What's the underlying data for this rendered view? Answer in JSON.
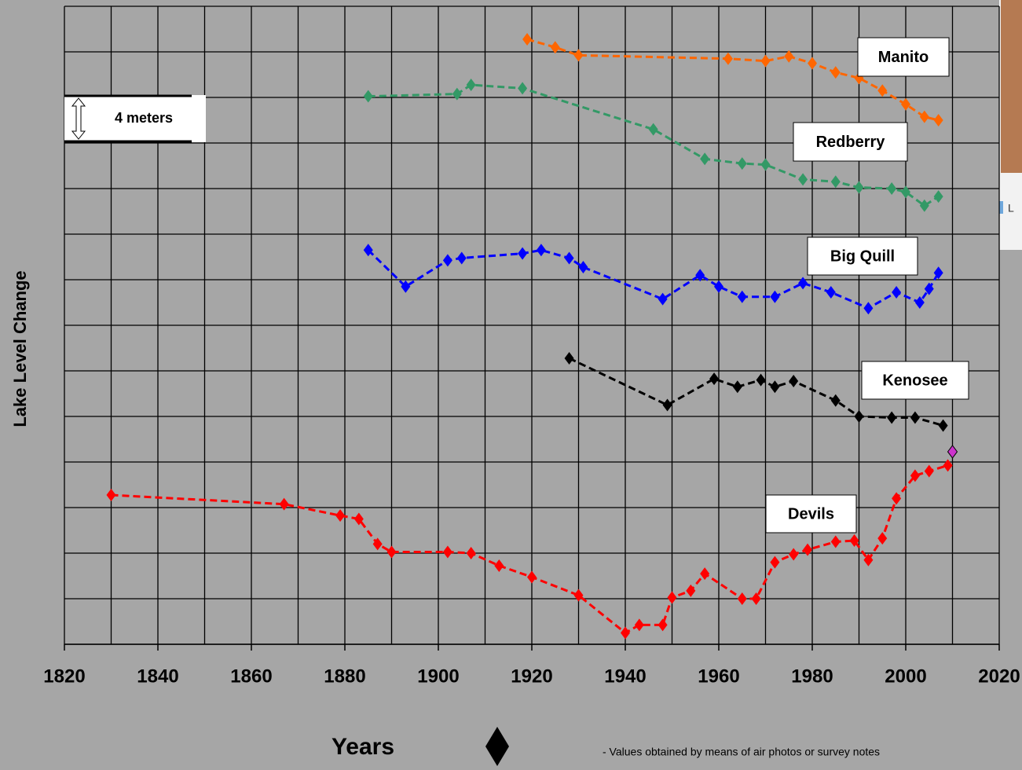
{
  "chart_data": {
    "type": "line",
    "x_label": "Years",
    "y_label": "Lake Level Change",
    "xlim": [
      1820,
      2020
    ],
    "xticks": [
      1820,
      1840,
      1860,
      1880,
      1900,
      1920,
      1940,
      1960,
      1980,
      2000,
      2020
    ],
    "x_minor_ticks": [
      1830,
      1850,
      1870,
      1890,
      1910,
      1930,
      1950,
      1970,
      1990,
      2010
    ],
    "ylim": [
      0,
      56
    ],
    "y_minor_ticks": [
      0,
      4,
      8,
      12,
      16,
      20,
      24,
      28,
      32,
      36,
      40,
      44,
      48,
      52,
      56
    ],
    "grid": true,
    "scale_label": "4 meters",
    "legend_note": "- Values obtained by means of air photos or survey notes",
    "inset_label": "L",
    "series": [
      {
        "name": "Manito",
        "color": "#ff6600",
        "x": [
          1919,
          1925,
          1930,
          1962,
          1970,
          1975,
          1980,
          1985,
          1990,
          1995,
          2000,
          2004,
          2007
        ],
        "values": [
          53.1,
          52.4,
          51.7,
          51.4,
          51.2,
          51.6,
          51.0,
          50.2,
          49.7,
          48.6,
          47.4,
          46.3,
          46.0
        ]
      },
      {
        "name": "Redberry",
        "color": "#339966",
        "x": [
          1885,
          1904,
          1907,
          1918,
          1946,
          1957,
          1965,
          1970,
          1978,
          1985,
          1990,
          1997,
          2000,
          2004,
          2007
        ],
        "values": [
          48.1,
          48.3,
          49.1,
          48.8,
          45.2,
          42.6,
          42.2,
          42.1,
          40.8,
          40.6,
          40.1,
          40.0,
          39.7,
          38.5,
          39.3
        ]
      },
      {
        "name": "Big Quill",
        "color": "#0000ff",
        "x": [
          1885,
          1893,
          1902,
          1905,
          1918,
          1922,
          1928,
          1931,
          1948,
          1956,
          1960,
          1965,
          1972,
          1978,
          1984,
          1992,
          1998,
          2003,
          2005,
          2007
        ],
        "values": [
          34.6,
          31.4,
          33.7,
          33.9,
          34.3,
          34.6,
          33.9,
          33.1,
          30.3,
          32.4,
          31.4,
          30.5,
          30.5,
          31.7,
          30.9,
          29.5,
          30.9,
          30.0,
          31.2,
          32.6
        ]
      },
      {
        "name": "Kenosee",
        "color": "#000000",
        "x": [
          1928,
          1949,
          1959,
          1964,
          1969,
          1972,
          1976,
          1985,
          1990,
          1997,
          2002,
          2008
        ],
        "values": [
          25.1,
          21.0,
          23.3,
          22.6,
          23.2,
          22.6,
          23.1,
          21.4,
          20.0,
          19.9,
          19.9,
          19.2
        ]
      },
      {
        "name": "Devils",
        "color": "#ff0000",
        "x": [
          1830,
          1867,
          1879,
          1883,
          1887,
          1890,
          1902,
          1907,
          1913,
          1920,
          1930,
          1940,
          1943,
          1948,
          1950,
          1954,
          1957,
          1965,
          1968,
          1972,
          1976,
          1979,
          1985,
          1989,
          1992,
          1995,
          1998,
          2002,
          2005,
          2009
        ],
        "values": [
          13.1,
          12.3,
          11.3,
          11.0,
          8.8,
          8.1,
          8.1,
          8.0,
          6.9,
          5.9,
          4.3,
          1.0,
          1.7,
          1.7,
          4.1,
          4.7,
          6.2,
          4.0,
          4.0,
          7.2,
          7.9,
          8.3,
          9.0,
          9.1,
          7.4,
          9.3,
          12.8,
          14.8,
          15.2,
          15.7
        ]
      }
    ],
    "highlight": {
      "x": 2010,
      "value": 16.9,
      "color": "#cc33cc"
    }
  }
}
